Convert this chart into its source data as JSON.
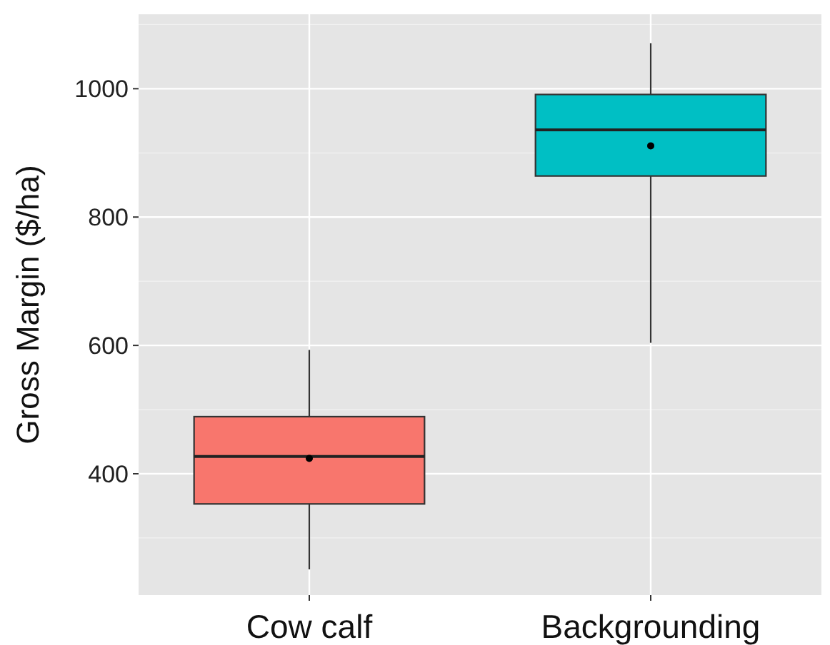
{
  "chart_data": {
    "type": "box",
    "ylabel": "Gross Margin ($/ha)",
    "categories": [
      "Cow calf",
      "Backgrounding"
    ],
    "colors": [
      "#f8766d",
      "#00bfc4"
    ],
    "boxes": [
      {
        "low": 251,
        "q1": 353,
        "median": 427,
        "q3": 489,
        "high": 593,
        "mean": 424
      },
      {
        "low": 604,
        "q1": 864,
        "median": 936,
        "q3": 991,
        "high": 1071,
        "mean": 911
      }
    ],
    "ylim": [
      211,
      1116
    ],
    "yticks": [
      400,
      600,
      800,
      1000
    ],
    "grid": true
  }
}
